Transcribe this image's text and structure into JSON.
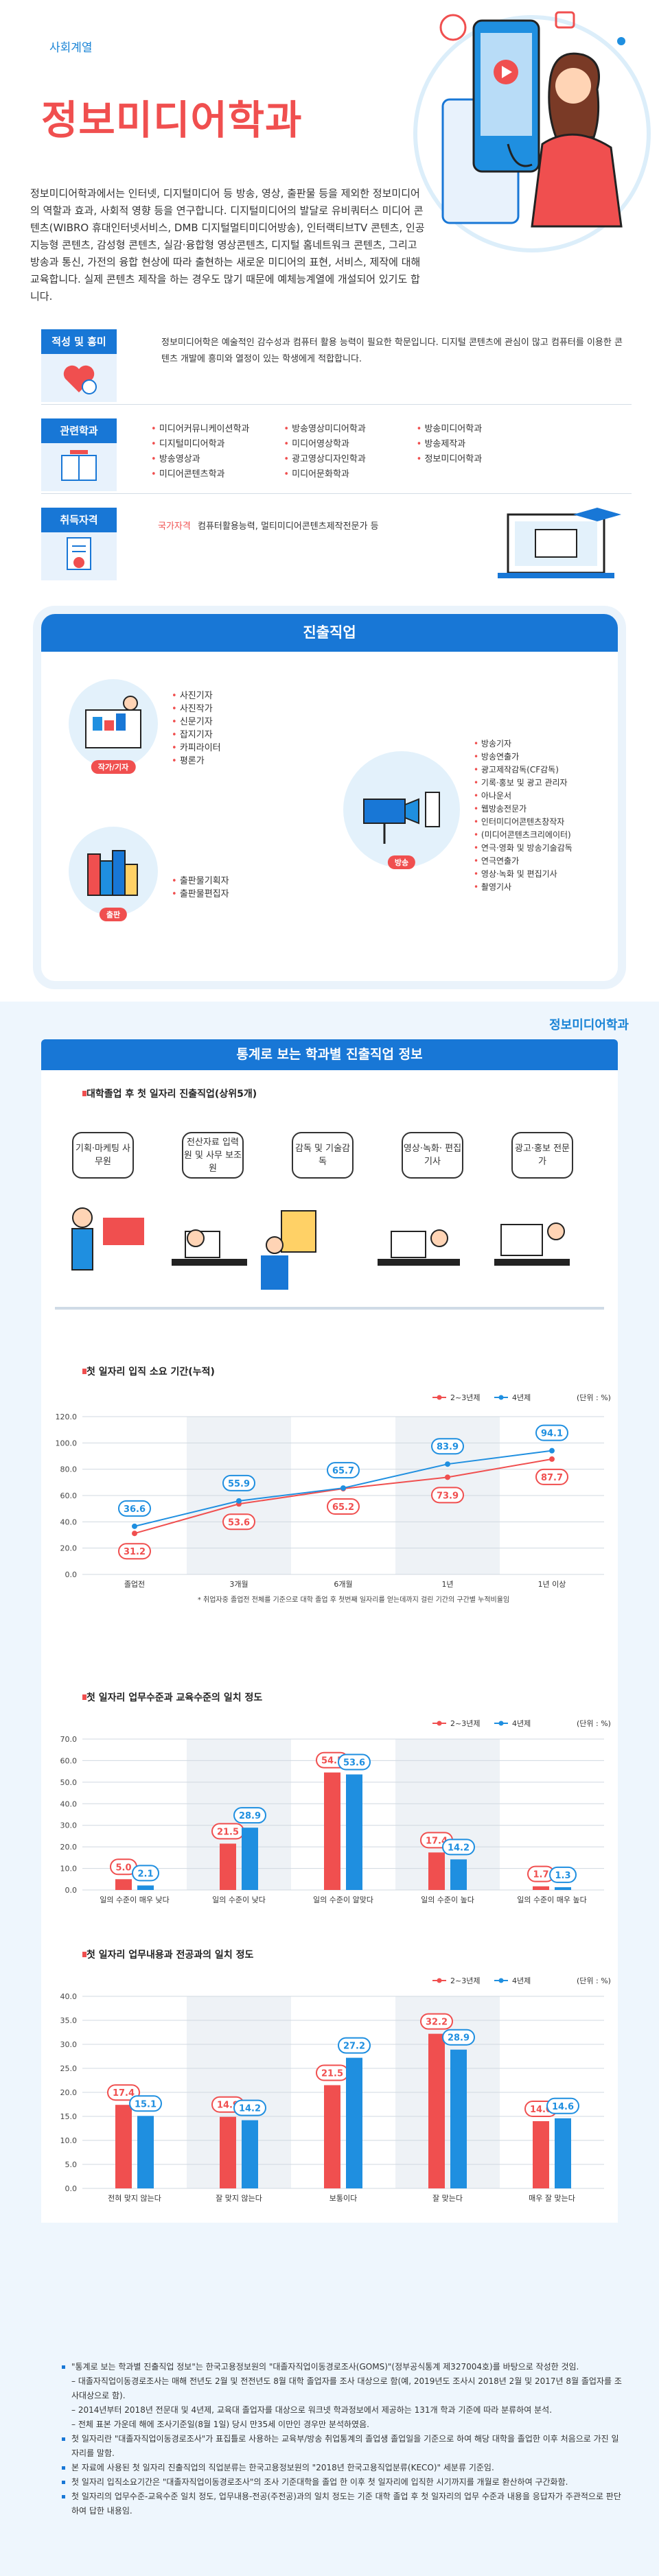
{
  "header": {
    "category": "사회계열",
    "title": "정보미디어학과",
    "intro": "정보미디어학과에서는 인터넷, 디지털미디어 등 방송, 영상, 출판물 등을 제외한 정보미디어의 역할과 효과, 사회적 영향 등을 연구합니다. 디지털미디어의 발달로 유비쿼터스 미디어 콘텐츠(WIBRO 휴대인터넷서비스, DMB 디지털멀티미디어방송), 인터랙티브TV 콘텐츠, 인공지능형 콘텐츠, 감성형 콘텐츠, 실감·융합형 영상콘텐츠, 디지털 홈네트워크 콘텐츠, 그리고 방송과 통신, 가전의 융합 현상에 따라 출현하는 새로운 미디어의 표현, 서비스, 제작에 대해 교육합니다. 실제 콘텐츠 제작을 하는 경우도 많기 때문에 예체능계열에 개설되어 있기도 합니다."
  },
  "aptitude": {
    "tag": "적성 및 흥미",
    "text": "정보미디어학은 예술적인 감수성과 컴퓨터 활용 능력이 필요한 학문입니다. 디지털 콘텐츠에 관심이 많고 컴퓨터를 이용한 콘텐츠 개발에 흥미와 열정이 있는 학생에게 적합합니다."
  },
  "related": {
    "tag": "관련학과",
    "items": [
      "미디어커뮤니케이션학과",
      "방송영상미디어학과",
      "방송미디어학과",
      "디지털미디어학과",
      "미디어영상학과",
      "방송제작과",
      "방송영상과",
      "광고영상디자인학과",
      "정보미디어학과",
      "미디어콘텐츠학과",
      "미디어문화학과",
      ""
    ]
  },
  "license": {
    "tag": "취득자격",
    "label": "국가자격",
    "text": "컴퓨터활용능력, 멀티미디어콘텐츠제작전문가 등"
  },
  "career": {
    "heading": "진출직업",
    "groups": [
      {
        "label": "작가/기자",
        "jobs": [
          "사진기자",
          "사진작가",
          "신문기자",
          "잡지기자",
          "카피라이터",
          "평론가"
        ]
      },
      {
        "label": "출판",
        "jobs": [
          "출판물기획자",
          "출판물편집자"
        ]
      },
      {
        "label": "방송",
        "jobs": [
          "방송기자",
          "방송연출가",
          "광고제작감독(CF감독)",
          "기록·홍보 및 광고 관리자",
          "아나운서",
          "웹방송전문가",
          "인터미디어콘텐츠창작자",
          "(미디어콘텐츠크리에이터)",
          "연극·영화 및 방송기술감독",
          "연극연출가",
          "영상·녹화 및 편집기사",
          "촬영기사"
        ]
      }
    ]
  },
  "stats": {
    "brand": "정보미디어학과",
    "heading": "통계로 보는 학과별 진출직업 정보",
    "top5_title": "대학졸업 후 첫 일자리 진출직업(상위5개)",
    "top5": [
      "기획·마케팅 사무원",
      "전산자료 입력원 및 사무 보조원",
      "감독 및 기술감독",
      "영상·녹화· 편집 기사",
      "광고·홍보 전문가"
    ],
    "legend_a": "2~3년제",
    "legend_b": "4년제",
    "unit": "(단위 : %)"
  },
  "chart_data": [
    {
      "type": "line",
      "title": "첫 일자리 입직 소요 기간(누적)",
      "categories": [
        "졸업전",
        "3개월",
        "6개월",
        "1년",
        "1년 이상"
      ],
      "series": [
        {
          "name": "2~3년제",
          "values": [
            31.2,
            53.6,
            65.2,
            73.9,
            87.7
          ]
        },
        {
          "name": "4년제",
          "values": [
            36.6,
            55.9,
            65.7,
            83.9,
            94.1
          ]
        }
      ],
      "ylim": [
        0,
        120
      ],
      "yticks": [
        "0.0",
        "20.0",
        "40.0",
        "60.0",
        "80.0",
        "100.0",
        "120.0"
      ],
      "note": "* 취업자중 졸업전 전체를 기준으로 대학 졸업 후 첫번째 일자리를 얻는데까지 걸린 기간의 구간별 누적비율임"
    },
    {
      "type": "bar",
      "title": "첫 일자리 업무수준과 교육수준의 일치 정도",
      "categories": [
        "일의 수준이 매우 낮다",
        "일의 수준이 낮다",
        "일의 수준이 알맞다",
        "일의 수준이 높다",
        "일의 수준이 매우 높다"
      ],
      "series": [
        {
          "name": "2~3년제",
          "values": [
            5.0,
            21.5,
            54.5,
            17.4,
            1.7
          ]
        },
        {
          "name": "4년제",
          "values": [
            2.1,
            28.9,
            53.6,
            14.2,
            1.3
          ]
        }
      ],
      "ylim": [
        0,
        70
      ],
      "yticks": [
        "0.0",
        "10.0",
        "20.0",
        "30.0",
        "40.0",
        "50.0",
        "60.0",
        "70.0"
      ]
    },
    {
      "type": "bar",
      "title": "첫 일자리 업무내용과 전공과의 일치 정도",
      "categories": [
        "전혀 맞지 않는다",
        "잘 맞지 않는다",
        "보통이다",
        "잘 맞는다",
        "매우 잘 맞는다"
      ],
      "series": [
        {
          "name": "2~3년제",
          "values": [
            17.4,
            14.9,
            21.5,
            32.2,
            14.0
          ]
        },
        {
          "name": "4년제",
          "values": [
            15.1,
            14.2,
            27.2,
            28.9,
            14.6
          ]
        }
      ],
      "ylim": [
        0,
        40
      ],
      "yticks": [
        "0.0",
        "5.0",
        "10.0",
        "15.0",
        "20.0",
        "25.0",
        "30.0",
        "35.0",
        "40.0"
      ]
    }
  ],
  "notes": [
    {
      "type": "b",
      "text": "\"통계로 보는 학과별 진출직업 정보\"는 한국고용정보원의 \"대졸자직업이동경로조사(GOMS)\"(정부공식통계 제327004호)를 바탕으로 작성한 것임."
    },
    {
      "type": "s",
      "text": "– 대졸자직업이동경로조사는 매해 전년도 2월 및 전전년도 8월 대학 졸업자를 조사 대상으로 함(예, 2019년도 조사시 2018년 2월 및 2017년 8월 졸업자를 조사대상으로 함)."
    },
    {
      "type": "s",
      "text": "– 2014년부터 2018년 전문대 및 4년제, 교육대 졸업자를 대상으로 워크넷 학과정보에서 제공하는 131개 학과 기준에 따라 분류하여 분석."
    },
    {
      "type": "s",
      "text": "– 전체 표본 가운데 해에 조사기준일(8월 1일) 당시 만35세 이만인 경우만 분석하였음."
    },
    {
      "type": "b",
      "text": "첫 일자리란 \"대졸자직업이동경로조사\"가 표집틀로 사용하는 교육부/방송 취업통계의 졸업생 졸업일을 기준으로 하여 해당 대학을 졸업한 이후 처음으로 가진 일자리를 말함."
    },
    {
      "type": "b",
      "text": "본 자료에 사용된 첫 일자리 진출직업의 직업분류는 한국고용정보원의 \"2018년 한국고용직업분류(KECO)\" 세분류 기준임."
    },
    {
      "type": "b",
      "text": "첫 일자리 입직소요기간은 \"대졸자직업이동경로조사\"의 조사 기준대학을 졸업 한 이후 첫 일자리에 입직한 시기까지를 개월로 환산하여 구간화함."
    },
    {
      "type": "b",
      "text": "첫 일자리의 업무수준-교육수준 일치 정도, 업무내용-전공(주전공)과의 일치 정도는 기준 대학 졸업 후 첫 일자리의 업무 수준과 내용을 응답자가 주관적으로 판단하여 답한 내용임."
    }
  ],
  "colors": {
    "red": "#f04f4f",
    "blue": "#1f8fe0",
    "navy": "#1877d6"
  }
}
